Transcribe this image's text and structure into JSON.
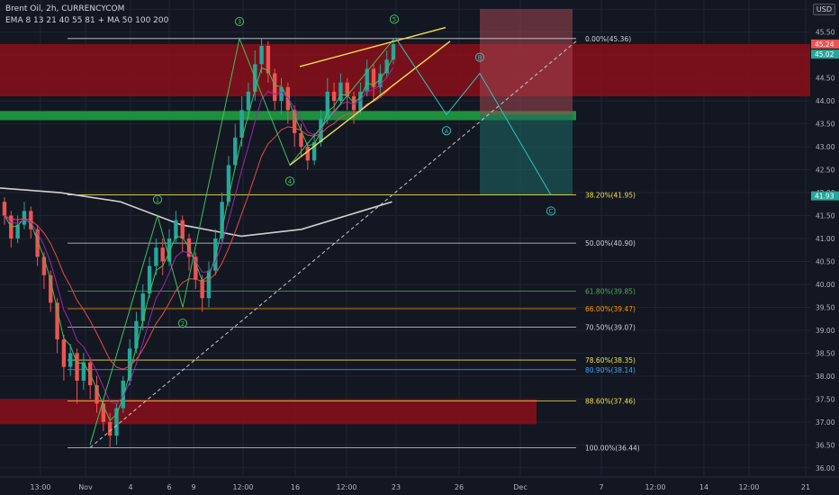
{
  "legend": {
    "symbol_line": "Brent Oil, 2h, CURRENCYCOM",
    "indicators_line": "EMA 8 13 21 40 55 81 + MA 50 100 200"
  },
  "currency_label": "USD",
  "colors": {
    "background": "#131722",
    "candle_up": "#26a69a",
    "candle_down": "#ef5350",
    "resistance_zone": "#8b0f1a",
    "support_line": "#1e8f3e",
    "wedge": "#f0e14a",
    "projection": "#2ec4b6",
    "trend_dash": "#c8c8c8",
    "ma200": "#d0d0d0",
    "ema_fast": "#3fbf5f",
    "ema_slow": "#e84a4a",
    "ema_mid": "#9c27b0"
  },
  "chart_data": {
    "type": "candlestick",
    "y_range": [
      35.8,
      46.2
    ],
    "x_labels": [
      "13:00",
      "Nov",
      "4",
      "6",
      "9",
      "12:00",
      "16",
      "12:00",
      "23",
      "26",
      "Dec",
      "7",
      "12:00",
      "14",
      "12:00",
      "21"
    ],
    "y_ticks": [
      36.0,
      36.5,
      37.0,
      37.5,
      38.0,
      38.5,
      39.0,
      39.5,
      40.0,
      40.5,
      41.0,
      41.5,
      42.0,
      42.5,
      43.0,
      43.5,
      44.0,
      44.5,
      45.0,
      45.5,
      46.0
    ],
    "fib_levels": [
      {
        "label": "0.00%(45.36)",
        "price": 45.36,
        "color": "#d1d4dc"
      },
      {
        "label": "38.20%(41.95)",
        "price": 41.95,
        "color": "#f0e14a"
      },
      {
        "label": "50.00%(40.90)",
        "price": 40.9,
        "color": "#d1d4dc"
      },
      {
        "label": "61.80%(39.85)",
        "price": 39.85,
        "color": "#4caf50"
      },
      {
        "label": "66.00%(39.47)",
        "price": 39.47,
        "color": "#ff9800"
      },
      {
        "label": "70.50%(39.07)",
        "price": 39.07,
        "color": "#d1d4dc"
      },
      {
        "label": "78.60%(38.35)",
        "price": 38.35,
        "color": "#f0e14a"
      },
      {
        "label": "80.90%(38.14)",
        "price": 38.14,
        "color": "#42a5f5"
      },
      {
        "label": "88.60%(37.46)",
        "price": 37.46,
        "color": "#f0e14a"
      },
      {
        "label": "100.00%(36.44)",
        "price": 36.44,
        "color": "#d1d4dc"
      }
    ],
    "price_tags": [
      {
        "label": "45.24",
        "price": 45.24,
        "color": "#ef5350"
      },
      {
        "label": "45.02",
        "price": 45.02,
        "color": "#26a69a"
      },
      {
        "label": "41.93",
        "price": 41.93,
        "color": "#26a69a"
      }
    ],
    "wave_labels": [
      "1",
      "2",
      "3",
      "4",
      "5",
      "A",
      "B",
      "C"
    ],
    "candles": [
      [
        41.8,
        41.5,
        41.9,
        41.3
      ],
      [
        41.5,
        41.0,
        41.6,
        40.8
      ],
      [
        41.0,
        41.3,
        41.5,
        40.9
      ],
      [
        41.3,
        41.6,
        41.8,
        41.2
      ],
      [
        41.6,
        41.2,
        41.7,
        41.0
      ],
      [
        41.2,
        40.6,
        41.3,
        40.4
      ],
      [
        40.6,
        40.2,
        40.7,
        39.9
      ],
      [
        40.2,
        39.6,
        40.3,
        39.4
      ],
      [
        39.6,
        38.8,
        39.7,
        38.5
      ],
      [
        38.8,
        38.2,
        38.9,
        37.9
      ],
      [
        38.2,
        38.5,
        38.7,
        38.0
      ],
      [
        38.5,
        37.9,
        38.6,
        37.4
      ],
      [
        37.9,
        38.3,
        38.5,
        37.7
      ],
      [
        38.3,
        37.8,
        38.4,
        37.5
      ],
      [
        37.8,
        37.4,
        38.0,
        37.2
      ],
      [
        37.4,
        37.0,
        37.5,
        36.8
      ],
      [
        37.0,
        36.7,
        37.2,
        36.44
      ],
      [
        36.7,
        37.3,
        37.4,
        36.5
      ],
      [
        37.3,
        37.9,
        38.0,
        37.2
      ],
      [
        37.9,
        38.6,
        38.8,
        37.8
      ],
      [
        38.6,
        39.2,
        39.4,
        38.5
      ],
      [
        39.2,
        39.8,
        40.0,
        39.0
      ],
      [
        39.8,
        40.4,
        40.6,
        39.7
      ],
      [
        40.4,
        40.8,
        41.0,
        40.2
      ],
      [
        40.8,
        40.5,
        41.0,
        40.2
      ],
      [
        40.5,
        41.0,
        41.2,
        40.4
      ],
      [
        41.0,
        41.4,
        41.6,
        40.9
      ],
      [
        41.4,
        41.0,
        41.5,
        40.7
      ],
      [
        41.0,
        40.6,
        41.1,
        40.3
      ],
      [
        40.6,
        40.1,
        40.7,
        39.9
      ],
      [
        40.1,
        39.7,
        40.2,
        39.4
      ],
      [
        39.7,
        40.3,
        40.5,
        39.5
      ],
      [
        40.3,
        41.0,
        41.2,
        40.2
      ],
      [
        41.0,
        41.8,
        42.0,
        40.9
      ],
      [
        41.8,
        42.6,
        42.8,
        41.7
      ],
      [
        42.6,
        43.2,
        43.5,
        42.5
      ],
      [
        43.2,
        43.8,
        44.1,
        43.0
      ],
      [
        43.8,
        44.2,
        44.4,
        43.6
      ],
      [
        44.2,
        44.8,
        45.1,
        44.0
      ],
      [
        44.8,
        45.2,
        45.36,
        44.6
      ],
      [
        45.2,
        44.6,
        45.3,
        44.4
      ],
      [
        44.6,
        44.0,
        44.7,
        43.8
      ],
      [
        44.0,
        44.3,
        44.5,
        43.7
      ],
      [
        44.3,
        43.8,
        44.4,
        43.5
      ],
      [
        43.8,
        43.3,
        43.9,
        43.0
      ],
      [
        43.3,
        43.0,
        43.5,
        42.8
      ],
      [
        43.0,
        42.7,
        43.1,
        42.5
      ],
      [
        42.7,
        43.1,
        43.3,
        42.6
      ],
      [
        43.1,
        43.6,
        43.8,
        43.0
      ],
      [
        43.6,
        44.2,
        44.5,
        43.5
      ],
      [
        44.2,
        44.0,
        44.4,
        43.7
      ],
      [
        44.0,
        44.4,
        44.6,
        43.9
      ],
      [
        44.4,
        44.1,
        44.5,
        43.8
      ],
      [
        44.1,
        43.8,
        44.2,
        43.5
      ],
      [
        43.8,
        44.2,
        44.4,
        43.7
      ],
      [
        44.2,
        44.7,
        44.9,
        44.1
      ],
      [
        44.7,
        44.3,
        44.8,
        44.0
      ],
      [
        44.3,
        44.6,
        44.8,
        44.1
      ],
      [
        44.6,
        44.9,
        45.1,
        44.5
      ],
      [
        44.9,
        45.24,
        45.3,
        44.8
      ]
    ],
    "ma200": [
      [
        0,
        42.1
      ],
      [
        20,
        42.0
      ],
      [
        40,
        41.8
      ],
      [
        60,
        41.3
      ],
      [
        80,
        41.05
      ],
      [
        100,
        41.2
      ],
      [
        120,
        41.6
      ],
      [
        130,
        41.8
      ]
    ]
  }
}
